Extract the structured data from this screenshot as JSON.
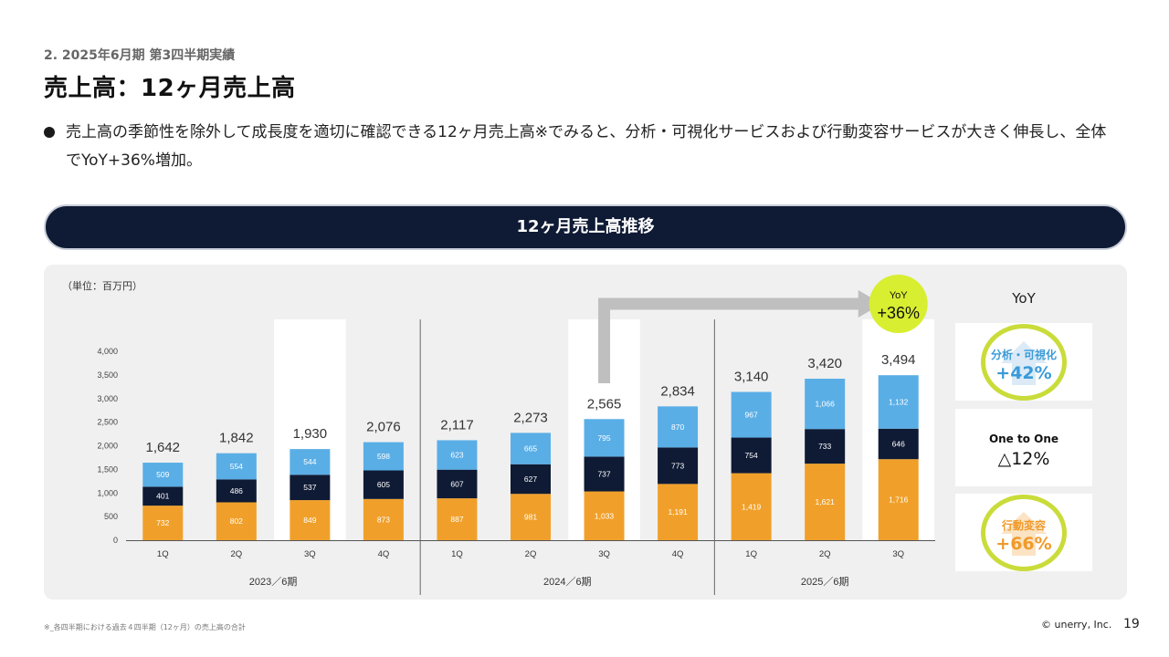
{
  "header": {
    "section": "2. 2025年6月期 第3四半期実績",
    "title": "売上高：12ヶ月売上高"
  },
  "bullet": {
    "text": "売上高の季節性を除外して成長度を適切に確認できる12ヶ月売上高※でみると、分析・可視化サービスおよび行動変容サービスが大きく伸長し、全体でYoY+36%増加。"
  },
  "banner": {
    "title": "12ヶ月売上高推移"
  },
  "unit_label": "（単位：百万円）",
  "yoy_panel": {
    "header": "YoY",
    "cards": [
      {
        "name": "分析・可視化",
        "value": "+42%",
        "color": "#3a9ad8",
        "arrow": "up"
      },
      {
        "name": "One to One",
        "value": "△12%",
        "color": "#111111",
        "arrow": "none"
      },
      {
        "name": "行動変容",
        "value": "+66%",
        "color": "#ef9a2a",
        "arrow": "up"
      }
    ]
  },
  "badge": {
    "line1": "YoY",
    "line2": "+36%"
  },
  "colors": {
    "behavior": "#f0a02a",
    "one_to_one": "#0f1b35",
    "analytics": "#5aaee6",
    "highlight": "#ffffff",
    "badge": "#d8ee30",
    "arrow": "#bfbfbf"
  },
  "chart_data": {
    "type": "bar",
    "stacked": true,
    "categories": [
      "1Q",
      "2Q",
      "3Q",
      "4Q",
      "1Q",
      "2Q",
      "3Q",
      "4Q",
      "1Q",
      "2Q",
      "3Q"
    ],
    "groups": [
      {
        "label": "2023／6期",
        "count": 4
      },
      {
        "label": "2024／6期",
        "count": 4
      },
      {
        "label": "2025／6期",
        "count": 3
      }
    ],
    "series": [
      {
        "values": [
          732,
          802,
          849,
          873,
          887,
          981,
          1033,
          1191,
          1419,
          1621,
          1716
        ]
      },
      {
        "values": [
          401,
          486,
          537,
          605,
          607,
          627,
          737,
          773,
          754,
          733,
          646
        ]
      },
      {
        "values": [
          509,
          554,
          544,
          598,
          623,
          665,
          795,
          870,
          967,
          1066,
          1132
        ]
      }
    ],
    "series_colors": [
      "#f0a02a",
      "#0f1b35",
      "#5aaee6"
    ],
    "totals": [
      "1,642",
      "1,842",
      "1,930",
      "2,076",
      "2,117",
      "2,273",
      "2,565",
      "2,834",
      "3,140",
      "3,420",
      "3,494"
    ],
    "value_labels": [
      [
        "732",
        "802",
        "849",
        "873",
        "887",
        "981",
        "1,033",
        "1,191",
        "1,419",
        "1,621",
        "1,716"
      ],
      [
        "401",
        "486",
        "537",
        "605",
        "607",
        "627",
        "737",
        "773",
        "754",
        "733",
        "646"
      ],
      [
        "509",
        "554",
        "544",
        "598",
        "623",
        "665",
        "795",
        "870",
        "967",
        "1,066",
        "1,132"
      ]
    ],
    "highlighted": [
      2,
      6,
      10
    ],
    "yticks": [
      "0",
      "500",
      "1,000",
      "1,500",
      "2,000",
      "2,500",
      "3,000",
      "3,500",
      "4,000"
    ],
    "ylim": [
      0,
      4000
    ],
    "title": "",
    "xlabel": "",
    "ylabel": "",
    "grid": false,
    "legend": "none"
  },
  "footnote": "※_各四半期における過去４四半期（12ヶ月）の売上高の合計",
  "copyright": "© unerry, Inc.",
  "page_number": "19"
}
